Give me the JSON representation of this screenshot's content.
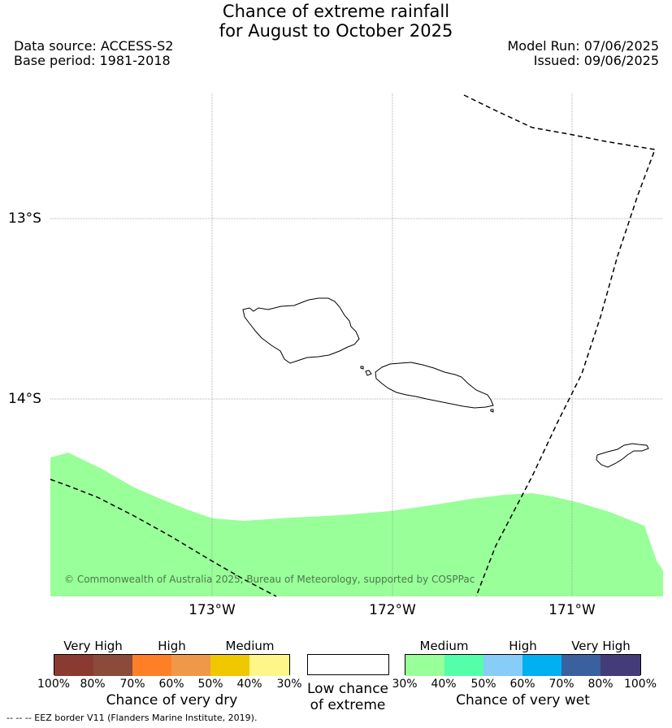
{
  "title": {
    "line1": "Chance of extreme rainfall",
    "line2": "for August to October 2025"
  },
  "header": {
    "data_source": "Data source: ACCESS-S2",
    "base_period": "Base period: 1981-2018",
    "model_run": "Model Run: 07/06/2025",
    "issued": "Issued: 09/06/2025"
  },
  "map": {
    "lat_labels": [
      "13°S",
      "14°S"
    ],
    "lon_labels": [
      "173°W",
      "172°W",
      "171°W"
    ],
    "shading_color": "#99FF99",
    "copyright": "© Commonwealth of Australia 2025, Bureau of Meteorology, supported by COSPPac"
  },
  "legend": {
    "dry": {
      "levels": [
        "Very High",
        "High",
        "Medium"
      ],
      "colors": [
        "#8B3A32",
        "#8B4A3A",
        "#FF7F27",
        "#F0984A",
        "#F0C800",
        "#FFF68A"
      ],
      "percentages": [
        "100%",
        "80%",
        "70%",
        "60%",
        "50%",
        "40%",
        "30%"
      ],
      "caption": "Chance of very dry"
    },
    "neutral": {
      "caption_line1": "Low chance",
      "caption_line2": "of extreme",
      "color": "#FFFFFF"
    },
    "wet": {
      "levels": [
        "Medium",
        "High",
        "Very High"
      ],
      "colors": [
        "#99FF99",
        "#55FFAA",
        "#88CCF8",
        "#00B0F0",
        "#3A609E",
        "#443C78"
      ],
      "percentages": [
        "30%",
        "40%",
        "50%",
        "60%",
        "70%",
        "80%",
        "100%"
      ],
      "caption": "Chance of very wet"
    }
  },
  "footnote": "-- -- -- EEZ border V11 (Flanders Marine Institute, 2019)."
}
